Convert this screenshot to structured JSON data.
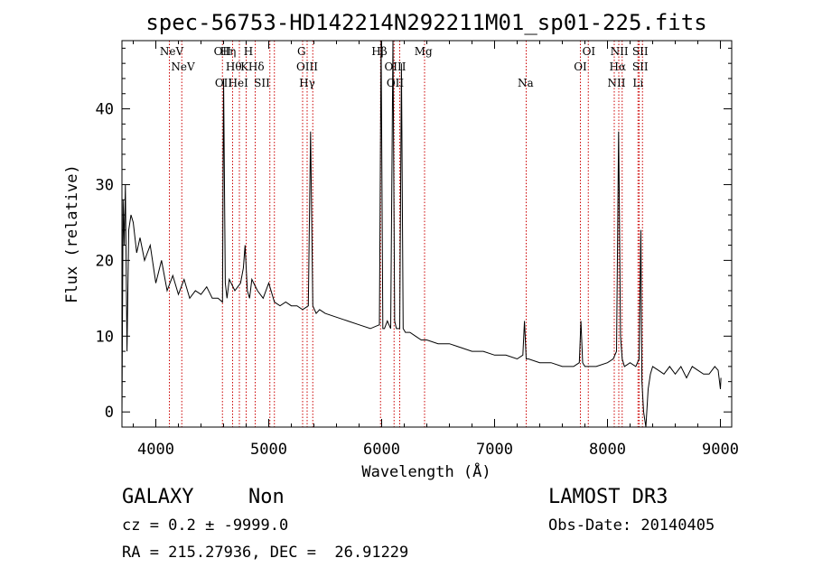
{
  "chart_data": {
    "type": "line",
    "title": "spec-56753-HD142214N292211M01_sp01-225.fits",
    "xlabel": "Wavelength (Å)",
    "ylabel": "Flux (relative)",
    "xlim": [
      3700,
      9100
    ],
    "ylim": [
      -2,
      49
    ],
    "x_ticks": [
      4000,
      5000,
      6000,
      7000,
      8000,
      9000
    ],
    "x_tick_labels": [
      "4000",
      "5000",
      "6000",
      "7000",
      "8000",
      "9000"
    ],
    "y_ticks": [
      0,
      10,
      20,
      30,
      40
    ],
    "y_tick_labels": [
      "0",
      "10",
      "20",
      "30",
      "40"
    ],
    "grid": false,
    "line_color": "#000000",
    "marker_color": "#cc0000",
    "spectrum": {
      "x": [
        3700,
        3710,
        3720,
        3730,
        3745,
        3760,
        3780,
        3800,
        3830,
        3860,
        3900,
        3950,
        4000,
        4050,
        4100,
        4150,
        4200,
        4250,
        4300,
        4350,
        4400,
        4450,
        4500,
        4550,
        4590,
        4600,
        4615,
        4630,
        4650,
        4700,
        4750,
        4775,
        4790,
        4810,
        4830,
        4850,
        4900,
        4950,
        5000,
        5050,
        5100,
        5150,
        5200,
        5250,
        5300,
        5350,
        5370,
        5390,
        5420,
        5450,
        5500,
        5600,
        5700,
        5800,
        5900,
        5980,
        5995,
        6010,
        6025,
        6050,
        6080,
        6100,
        6115,
        6130,
        6160,
        6175,
        6190,
        6210,
        6250,
        6300,
        6350,
        6400,
        6500,
        6600,
        6700,
        6800,
        6900,
        7000,
        7100,
        7200,
        7250,
        7265,
        7280,
        7300,
        7400,
        7500,
        7600,
        7700,
        7750,
        7765,
        7780,
        7800,
        7900,
        8000,
        8050,
        8080,
        8098,
        8105,
        8115,
        8130,
        8150,
        8200,
        8250,
        8280,
        8295,
        8305,
        8320,
        8340,
        8360,
        8380,
        8400,
        8450,
        8500,
        8550,
        8600,
        8650,
        8700,
        8750,
        8800,
        8850,
        8900,
        8950,
        8980,
        9000,
        9005
      ],
      "y": [
        -0.5,
        28,
        22,
        30,
        8,
        24,
        26,
        25,
        21,
        23,
        20,
        22,
        17,
        20,
        16,
        18,
        15.5,
        17.5,
        15,
        16,
        15.5,
        16.5,
        15,
        15,
        14.5,
        44,
        17,
        15,
        17.5,
        16,
        17,
        19,
        22,
        16,
        15,
        17.5,
        16,
        15,
        17,
        14.5,
        14,
        14.5,
        14,
        14,
        13.5,
        14,
        37,
        14,
        13,
        13.5,
        13,
        12.5,
        12,
        11.5,
        11,
        11.5,
        50,
        11,
        11,
        12,
        11,
        50,
        12,
        11,
        11,
        46,
        11,
        10.5,
        10.5,
        10,
        9.5,
        9.5,
        9,
        9,
        8.5,
        8,
        8,
        7.5,
        7.5,
        7,
        7.5,
        12,
        7,
        7,
        6.5,
        6.5,
        6,
        6,
        6.5,
        12,
        6.5,
        6,
        6,
        6.5,
        7,
        8,
        37,
        28,
        10,
        7,
        6,
        6.5,
        6,
        7,
        24,
        4,
        0,
        -2,
        3,
        5,
        6,
        5.5,
        5,
        6,
        5,
        6,
        4.5,
        6,
        5.5,
        5,
        5,
        6,
        5.5,
        3,
        4.5
      ]
    },
    "lines": [
      {
        "label": "NeV",
        "x": 4140,
        "row": 1
      },
      {
        "label": "NeV",
        "x": 4240,
        "row": 2
      },
      {
        "label": "OII",
        "x": 4590,
        "row": 1
      },
      {
        "label": "OII",
        "x": 4600,
        "row": 3
      },
      {
        "label": "Hη",
        "x": 4640,
        "row": 1
      },
      {
        "label": "Hθ",
        "x": 4690,
        "row": 2
      },
      {
        "label": "HeI",
        "x": 4730,
        "row": 3
      },
      {
        "label": "K",
        "x": 4785,
        "row": 2
      },
      {
        "label": "H",
        "x": 4820,
        "row": 1
      },
      {
        "label": "Hδ",
        "x": 4890,
        "row": 2
      },
      {
        "label": "SII",
        "x": 4940,
        "row": 3
      },
      {
        "label": "G",
        "x": 5290,
        "row": 1
      },
      {
        "label": "OIII",
        "x": 5340,
        "row": 2
      },
      {
        "label": "Hγ",
        "x": 5340,
        "row": 3
      },
      {
        "label": "Hβ",
        "x": 5980,
        "row": 1
      },
      {
        "label": "OIII",
        "x": 6120,
        "row": 2
      },
      {
        "label": "OII",
        "x": 6120,
        "row": 3
      },
      {
        "label": "Mg",
        "x": 6370,
        "row": 1
      },
      {
        "label": "Na",
        "x": 7275,
        "row": 3
      },
      {
        "label": "OI",
        "x": 7835,
        "row": 1
      },
      {
        "label": "OI",
        "x": 7760,
        "row": 2
      },
      {
        "label": "NII",
        "x": 8105,
        "row": 1
      },
      {
        "label": "Hα",
        "x": 8090,
        "row": 2
      },
      {
        "label": "NII",
        "x": 8080,
        "row": 3
      },
      {
        "label": "SII",
        "x": 8290,
        "row": 1
      },
      {
        "label": "SII",
        "x": 8290,
        "row": 2
      },
      {
        "label": "Li",
        "x": 8270,
        "row": 3
      }
    ],
    "marker_x": [
      4120,
      4230,
      4590,
      4680,
      4740,
      4800,
      4880,
      5010,
      5050,
      5300,
      5340,
      5390,
      5990,
      6110,
      6160,
      6380,
      7280,
      7760,
      7830,
      8060,
      8100,
      8130,
      8270,
      8280,
      8310
    ]
  },
  "info": {
    "class": "GALAXY",
    "subclass": "Non",
    "survey": "LAMOST DR3",
    "cz": "cz = 0.2 ± -9999.0",
    "obs_date": "Obs-Date: 20140405",
    "radec": "RA = 215.27936, DEC =  26.91229"
  }
}
